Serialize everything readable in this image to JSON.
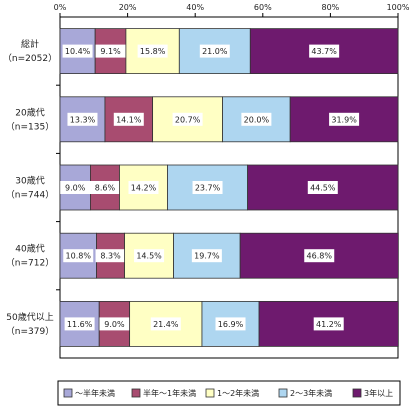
{
  "chart_data": {
    "type": "bar",
    "orientation": "horizontal",
    "stacked": "percent",
    "categories": [
      {
        "name": "総計",
        "n": "（n=2052）"
      },
      {
        "name": "20歳代",
        "n": "（n=135）"
      },
      {
        "name": "30歳代",
        "n": "（n=744）"
      },
      {
        "name": "40歳代",
        "n": "（n=712）"
      },
      {
        "name": "50歳代以上",
        "n": "（n=379）"
      }
    ],
    "series": [
      {
        "name": "～半年未満",
        "color": "#a8a8d8",
        "values": [
          10.4,
          13.3,
          9.0,
          10.8,
          11.6
        ]
      },
      {
        "name": "半年～1年未満",
        "color": "#a84c70",
        "values": [
          9.1,
          14.1,
          8.6,
          8.3,
          9.0
        ]
      },
      {
        "name": "1～2年未満",
        "color": "#ffffc4",
        "values": [
          15.8,
          20.7,
          14.2,
          14.5,
          21.4
        ]
      },
      {
        "name": "2～3年未満",
        "color": "#aed6f0",
        "values": [
          21.0,
          20.0,
          23.7,
          19.7,
          16.9
        ]
      },
      {
        "name": "3年以上",
        "color": "#6e1a6e",
        "values": [
          43.7,
          31.9,
          44.5,
          46.8,
          41.2
        ]
      }
    ],
    "xlim": [
      0,
      100
    ],
    "xticks": [
      "0%",
      "20%",
      "40%",
      "60%",
      "80%",
      "100%"
    ],
    "grid": false,
    "legend": "bottom"
  }
}
